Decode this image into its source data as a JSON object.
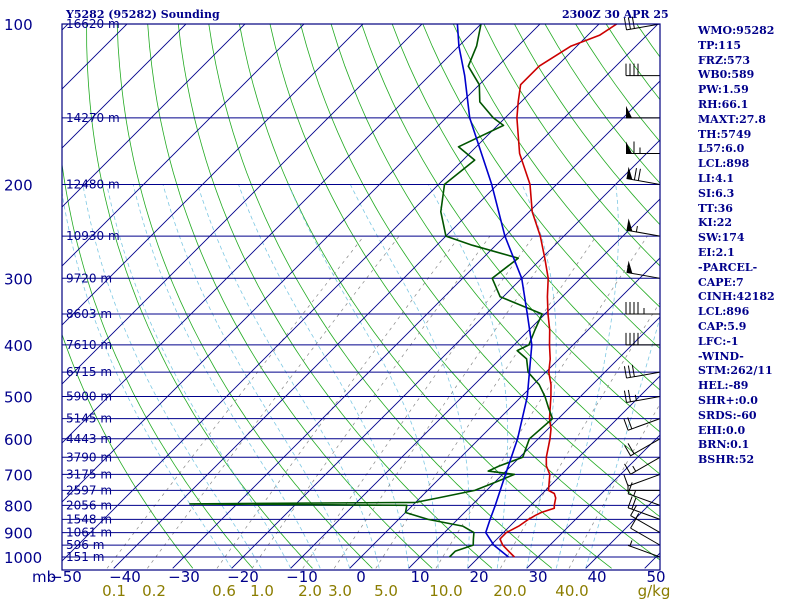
{
  "title_left": "Y5282 (95282) Sounding",
  "title_right": "2300Z 30 APR 25",
  "colors": {
    "frame": "#000080",
    "isobar": "#00008b",
    "isotherm": "#00008b",
    "dry_adiabat": "#22aa22",
    "moist_adiabat": "#7ec8e3",
    "mixing_ratio": "#888888",
    "temperature": "#cc0000",
    "dewpoint": "#005500",
    "parcel": "#0000cc",
    "labels": "#00008b",
    "mixing_labels": "#8b7d00",
    "wind": "#000000"
  },
  "stats": [
    "WMO:95282",
    "TP:115",
    "FRZ:573",
    "WB0:589",
    "PW:1.59",
    "RH:66.1",
    "MAXT:27.8",
    "TH:5749",
    "L57:6.0",
    "LCL:898",
    "LI:4.1",
    "SI:6.3",
    "TT:36",
    "KI:22",
    "SW:174",
    "EI:2.1",
    "-PARCEL-",
    "CAPE:7",
    "CINH:42182",
    "LCL:896",
    "CAP:5.9",
    "LFC:-1",
    "-WIND-",
    "STM:262/11",
    "HEL:-89",
    "SHR+:0.0",
    "SRDS:-60",
    "EHI:0.0",
    "BRN:0.1",
    "BSHR:52"
  ],
  "chart_data": {
    "type": "skew-t",
    "x_axis_label": "mb",
    "y_axis": "pressure (mb), log scale",
    "pressure_range": [
      1000,
      100
    ],
    "temperature_range": [
      -50,
      50
    ],
    "pressure_ticks": [
      100,
      200,
      300,
      400,
      500,
      600,
      700,
      800,
      900,
      1000
    ],
    "temperature_ticks": [
      -50,
      -40,
      -30,
      -20,
      -10,
      0,
      10,
      20,
      30,
      40,
      50
    ],
    "height_labels": [
      {
        "p": 100,
        "label": "16620 m"
      },
      {
        "p": 150,
        "label": "14270 m"
      },
      {
        "p": 200,
        "label": "12480 m"
      },
      {
        "p": 250,
        "label": "10930 m"
      },
      {
        "p": 300,
        "label": "9720 m"
      },
      {
        "p": 350,
        "label": "8603 m"
      },
      {
        "p": 400,
        "label": "7610 m"
      },
      {
        "p": 450,
        "label": "6715 m"
      },
      {
        "p": 500,
        "label": "5900 m"
      },
      {
        "p": 550,
        "label": "5145 m"
      },
      {
        "p": 600,
        "label": "4443 m"
      },
      {
        "p": 650,
        "label": "3790 m"
      },
      {
        "p": 700,
        "label": "3175 m"
      },
      {
        "p": 750,
        "label": "2597 m"
      },
      {
        "p": 800,
        "label": "2056 m"
      },
      {
        "p": 850,
        "label": "1548 m"
      },
      {
        "p": 900,
        "label": "1061 m"
      },
      {
        "p": 950,
        "label": "596 m"
      },
      {
        "p": 1000,
        "label": "151 m"
      }
    ],
    "mixing_ratio_labels": [
      "0.1",
      "0.2",
      "0.6",
      "1.0",
      "2.0",
      "3.0",
      "5.0",
      "10.0",
      "20.0",
      "40.0",
      "g/kg"
    ],
    "mixing_ratio_values": [
      0.1,
      0.2,
      0.6,
      1.0,
      2.0,
      3.0,
      5.0,
      10.0,
      20.0,
      40.0
    ],
    "series": [
      {
        "name": "temperature",
        "points": [
          [
            1000,
            26
          ],
          [
            975,
            24
          ],
          [
            950,
            22
          ],
          [
            925,
            20.5
          ],
          [
            900,
            20.5
          ],
          [
            875,
            21.5
          ],
          [
            850,
            22
          ],
          [
            835,
            22.5
          ],
          [
            825,
            23
          ],
          [
            810,
            24.5
          ],
          [
            800,
            24
          ],
          [
            775,
            23
          ],
          [
            760,
            22
          ],
          [
            750,
            20.5
          ],
          [
            700,
            18
          ],
          [
            675,
            16
          ],
          [
            650,
            14.5
          ],
          [
            600,
            12
          ],
          [
            575,
            10.5
          ],
          [
            550,
            8.5
          ],
          [
            500,
            5
          ],
          [
            475,
            3
          ],
          [
            450,
            0.5
          ],
          [
            425,
            -1.5
          ],
          [
            400,
            -4
          ],
          [
            375,
            -6.5
          ],
          [
            350,
            -9.5
          ],
          [
            325,
            -12.5
          ],
          [
            300,
            -15.5
          ],
          [
            275,
            -19.5
          ],
          [
            250,
            -24
          ],
          [
            225,
            -29.5
          ],
          [
            200,
            -34.5
          ],
          [
            175,
            -41.5
          ],
          [
            150,
            -48
          ],
          [
            140,
            -50.5
          ],
          [
            130,
            -53
          ],
          [
            120,
            -53
          ],
          [
            110,
            -51
          ],
          [
            105,
            -48
          ],
          [
            100,
            -47
          ]
        ]
      },
      {
        "name": "dewpoint",
        "points": [
          [
            1000,
            15
          ],
          [
            975,
            15
          ],
          [
            950,
            17
          ],
          [
            925,
            16
          ],
          [
            900,
            15
          ],
          [
            875,
            12
          ],
          [
            850,
            5
          ],
          [
            825,
            0
          ],
          [
            800,
            -1
          ],
          [
            795,
            -38
          ],
          [
            790,
            0
          ],
          [
            775,
            3
          ],
          [
            750,
            8
          ],
          [
            725,
            10
          ],
          [
            700,
            12
          ],
          [
            690,
            7
          ],
          [
            675,
            8
          ],
          [
            650,
            10.5
          ],
          [
            600,
            8.5
          ],
          [
            550,
            9
          ],
          [
            525,
            6.5
          ],
          [
            500,
            4
          ],
          [
            475,
            1
          ],
          [
            450,
            -3
          ],
          [
            425,
            -5.5
          ],
          [
            410,
            -8.5
          ],
          [
            400,
            -7.5
          ],
          [
            375,
            -9
          ],
          [
            350,
            -10.5
          ],
          [
            325,
            -20.5
          ],
          [
            300,
            -25
          ],
          [
            275,
            -24
          ],
          [
            260,
            -34
          ],
          [
            250,
            -40
          ],
          [
            225,
            -45
          ],
          [
            200,
            -49
          ],
          [
            180,
            -48
          ],
          [
            170,
            -53
          ],
          [
            155,
            -49
          ],
          [
            150,
            -52
          ],
          [
            140,
            -57
          ],
          [
            130,
            -60
          ],
          [
            120,
            -65
          ],
          [
            110,
            -67
          ],
          [
            100,
            -70
          ]
        ]
      },
      {
        "name": "parcel",
        "points": [
          [
            1000,
            25
          ],
          [
            950,
            20.5
          ],
          [
            900,
            17
          ],
          [
            850,
            15.5
          ],
          [
            800,
            14
          ],
          [
            700,
            10.5
          ],
          [
            600,
            6.5
          ],
          [
            500,
            1
          ],
          [
            400,
            -7
          ],
          [
            350,
            -13
          ],
          [
            300,
            -20
          ],
          [
            250,
            -30
          ],
          [
            200,
            -41
          ],
          [
            150,
            -56
          ],
          [
            125,
            -64
          ],
          [
            110,
            -70
          ],
          [
            100,
            -74
          ]
        ]
      }
    ],
    "wind_barbs": [
      {
        "p": 1000,
        "dir": 290,
        "spd": 5
      },
      {
        "p": 950,
        "dir": 300,
        "spd": 10
      },
      {
        "p": 900,
        "dir": 300,
        "spd": 15
      },
      {
        "p": 850,
        "dir": 290,
        "spd": 20
      },
      {
        "p": 800,
        "dir": 290,
        "spd": 15
      },
      {
        "p": 750,
        "dir": 270,
        "spd": 5
      },
      {
        "p": 700,
        "dir": 250,
        "spd": 10
      },
      {
        "p": 650,
        "dir": 240,
        "spd": 15
      },
      {
        "p": 600,
        "dir": 240,
        "spd": 20
      },
      {
        "p": 550,
        "dir": 250,
        "spd": 20
      },
      {
        "p": 500,
        "dir": 260,
        "spd": 25
      },
      {
        "p": 450,
        "dir": 260,
        "spd": 30
      },
      {
        "p": 400,
        "dir": 270,
        "spd": 40
      },
      {
        "p": 350,
        "dir": 270,
        "spd": 45
      },
      {
        "p": 300,
        "dir": 280,
        "spd": 50
      },
      {
        "p": 250,
        "dir": 280,
        "spd": 55
      },
      {
        "p": 200,
        "dir": 280,
        "spd": 70
      },
      {
        "p": 175,
        "dir": 270,
        "spd": 65
      },
      {
        "p": 150,
        "dir": 270,
        "spd": 50
      },
      {
        "p": 125,
        "dir": 270,
        "spd": 40
      },
      {
        "p": 100,
        "dir": 260,
        "spd": 30
      }
    ]
  }
}
